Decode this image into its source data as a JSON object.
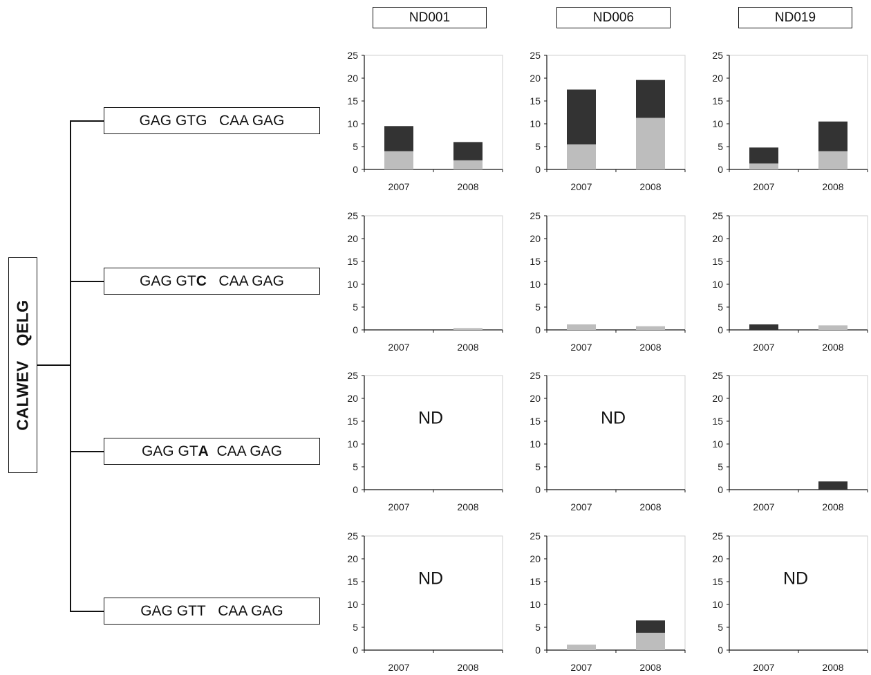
{
  "root_label": "CALWEV   QELG",
  "patients": [
    "ND001",
    "ND006",
    "ND019"
  ],
  "sequences": [
    {
      "prefix": "GAG GT",
      "variant": "G",
      "suffix": "   CAA GAG",
      "variant_bold": false
    },
    {
      "prefix": "GAG GT",
      "variant": "C",
      "suffix": "   CAA GAG",
      "variant_bold": true
    },
    {
      "prefix": "GAG GT",
      "variant": "A",
      "suffix": "  CAA GAG",
      "variant_bold": true
    },
    {
      "prefix": "GAG GT",
      "variant": "T",
      "suffix": "   CAA GAG",
      "variant_bold": false
    }
  ],
  "colors": {
    "light": "#bdbdbd",
    "dark": "#333333",
    "axis": "#111111"
  },
  "chart_data": [
    {
      "row": 0,
      "col": 0,
      "type": "bar",
      "stacked": true,
      "categories": [
        "2007",
        "2008"
      ],
      "ylim": [
        0,
        25
      ],
      "yticks": [
        0,
        5,
        10,
        15,
        20,
        25
      ],
      "nd": false,
      "series": [
        {
          "values": [
            4,
            2
          ],
          "color": "light"
        },
        {
          "values": [
            5.5,
            4
          ],
          "color": "dark"
        }
      ]
    },
    {
      "row": 0,
      "col": 1,
      "type": "bar",
      "stacked": true,
      "categories": [
        "2007",
        "2008"
      ],
      "ylim": [
        0,
        25
      ],
      "yticks": [
        0,
        5,
        10,
        15,
        20,
        25
      ],
      "nd": false,
      "series": [
        {
          "values": [
            5.5,
            11.3
          ],
          "color": "light"
        },
        {
          "values": [
            12,
            8.3
          ],
          "color": "dark"
        }
      ]
    },
    {
      "row": 0,
      "col": 2,
      "type": "bar",
      "stacked": true,
      "categories": [
        "2007",
        "2008"
      ],
      "ylim": [
        0,
        25
      ],
      "yticks": [
        0,
        5,
        10,
        15,
        20,
        25
      ],
      "nd": false,
      "series": [
        {
          "values": [
            1.3,
            4
          ],
          "color": "light"
        },
        {
          "values": [
            3.5,
            6.5
          ],
          "color": "dark"
        }
      ]
    },
    {
      "row": 1,
      "col": 0,
      "type": "bar",
      "stacked": true,
      "categories": [
        "2007",
        "2008"
      ],
      "ylim": [
        0,
        25
      ],
      "yticks": [
        0,
        5,
        10,
        15,
        20,
        25
      ],
      "nd": false,
      "series": [
        {
          "values": [
            0,
            0.4
          ],
          "color": "light"
        },
        {
          "values": [
            0,
            0
          ],
          "color": "dark"
        }
      ]
    },
    {
      "row": 1,
      "col": 1,
      "type": "bar",
      "stacked": true,
      "categories": [
        "2007",
        "2008"
      ],
      "ylim": [
        0,
        25
      ],
      "yticks": [
        0,
        5,
        10,
        15,
        20,
        25
      ],
      "nd": false,
      "series": [
        {
          "values": [
            1.2,
            0.8
          ],
          "color": "light"
        },
        {
          "values": [
            0,
            0
          ],
          "color": "dark"
        }
      ]
    },
    {
      "row": 1,
      "col": 2,
      "type": "bar",
      "stacked": true,
      "categories": [
        "2007",
        "2008"
      ],
      "ylim": [
        0,
        25
      ],
      "yticks": [
        0,
        5,
        10,
        15,
        20,
        25
      ],
      "nd": false,
      "series": [
        {
          "values": [
            0,
            1
          ],
          "color": "light"
        },
        {
          "values": [
            1.2,
            0
          ],
          "color": "dark"
        }
      ]
    },
    {
      "row": 2,
      "col": 0,
      "type": "bar",
      "stacked": true,
      "categories": [
        "2007",
        "2008"
      ],
      "ylim": [
        0,
        25
      ],
      "yticks": [
        0,
        5,
        10,
        15,
        20,
        25
      ],
      "nd": true,
      "nd_label": "ND",
      "series": []
    },
    {
      "row": 2,
      "col": 1,
      "type": "bar",
      "stacked": true,
      "categories": [
        "2007",
        "2008"
      ],
      "ylim": [
        0,
        25
      ],
      "yticks": [
        0,
        5,
        10,
        15,
        20,
        25
      ],
      "nd": true,
      "nd_label": "ND",
      "series": []
    },
    {
      "row": 2,
      "col": 2,
      "type": "bar",
      "stacked": true,
      "categories": [
        "2007",
        "2008"
      ],
      "ylim": [
        0,
        25
      ],
      "yticks": [
        0,
        5,
        10,
        15,
        20,
        25
      ],
      "nd": false,
      "series": [
        {
          "values": [
            0,
            0
          ],
          "color": "light"
        },
        {
          "values": [
            0,
            1.8
          ],
          "color": "dark"
        }
      ]
    },
    {
      "row": 3,
      "col": 0,
      "type": "bar",
      "stacked": true,
      "categories": [
        "2007",
        "2008"
      ],
      "ylim": [
        0,
        25
      ],
      "yticks": [
        0,
        5,
        10,
        15,
        20,
        25
      ],
      "nd": true,
      "nd_label": "ND",
      "series": []
    },
    {
      "row": 3,
      "col": 1,
      "type": "bar",
      "stacked": true,
      "categories": [
        "2007",
        "2008"
      ],
      "ylim": [
        0,
        25
      ],
      "yticks": [
        0,
        5,
        10,
        15,
        20,
        25
      ],
      "nd": false,
      "series": [
        {
          "values": [
            1.2,
            3.8
          ],
          "color": "light"
        },
        {
          "values": [
            0,
            2.7
          ],
          "color": "dark"
        }
      ]
    },
    {
      "row": 3,
      "col": 2,
      "type": "bar",
      "stacked": true,
      "categories": [
        "2007",
        "2008"
      ],
      "ylim": [
        0,
        25
      ],
      "yticks": [
        0,
        5,
        10,
        15,
        20,
        25
      ],
      "nd": true,
      "nd_label": "ND",
      "series": []
    }
  ]
}
